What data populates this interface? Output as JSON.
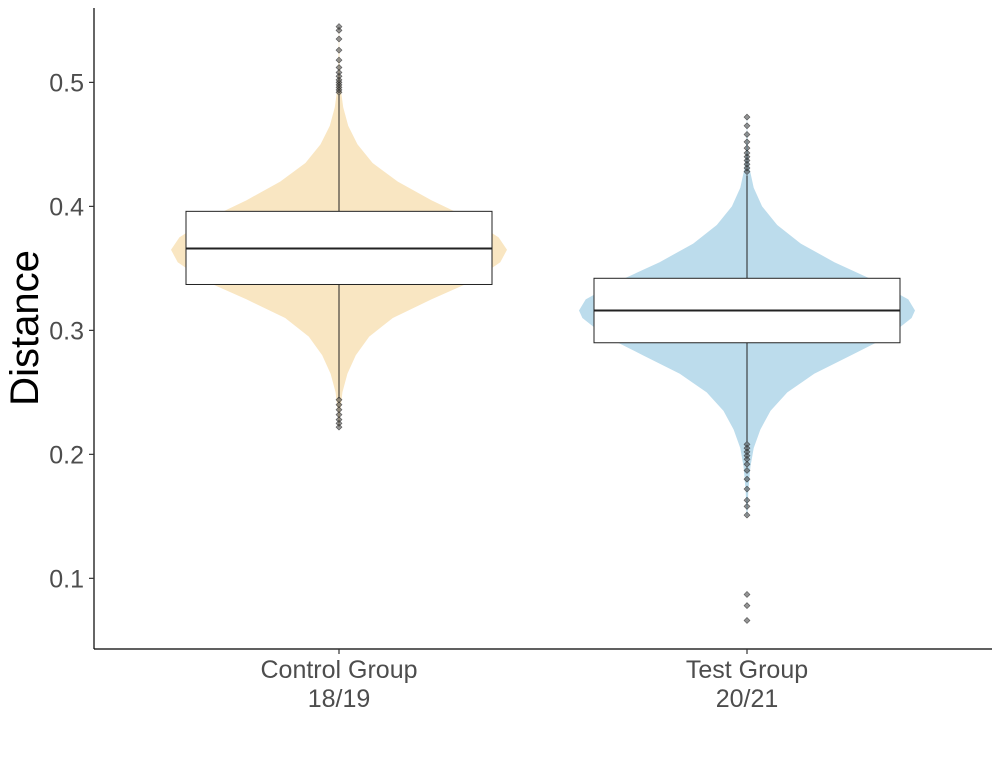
{
  "chart_data": {
    "type": "violin-boxplot",
    "ylabel": "Distance",
    "xlabel": "",
    "ylim": [
      0.043,
      0.56
    ],
    "yticks": [
      0.1,
      0.2,
      0.3,
      0.4,
      0.5
    ],
    "ytick_labels": [
      "0.1",
      "0.2",
      "0.3",
      "0.4",
      "0.5"
    ],
    "grid": false,
    "groups": [
      {
        "label_line1": "Control Group",
        "label_line2": "18/19",
        "color": "#f9e6c2",
        "box": {
          "lower_whisker": 0.245,
          "q1": 0.337,
          "median": 0.366,
          "q3": 0.396,
          "upper_whisker": 0.49
        },
        "outliers": [
          0.492,
          0.494,
          0.496,
          0.498,
          0.5,
          0.502,
          0.505,
          0.508,
          0.512,
          0.518,
          0.526,
          0.535,
          0.542,
          0.545,
          0.244,
          0.24,
          0.236,
          0.232,
          0.228,
          0.225,
          0.222
        ],
        "density": [
          [
            0.222,
            0.003
          ],
          [
            0.235,
            0.008
          ],
          [
            0.25,
            0.02
          ],
          [
            0.265,
            0.05
          ],
          [
            0.28,
            0.1
          ],
          [
            0.295,
            0.18
          ],
          [
            0.31,
            0.32
          ],
          [
            0.325,
            0.55
          ],
          [
            0.34,
            0.8
          ],
          [
            0.355,
            0.96
          ],
          [
            0.365,
            1.0
          ],
          [
            0.375,
            0.95
          ],
          [
            0.39,
            0.78
          ],
          [
            0.405,
            0.55
          ],
          [
            0.42,
            0.35
          ],
          [
            0.435,
            0.2
          ],
          [
            0.45,
            0.11
          ],
          [
            0.465,
            0.055
          ],
          [
            0.48,
            0.025
          ],
          [
            0.495,
            0.01
          ],
          [
            0.51,
            0.004
          ],
          [
            0.53,
            0.002
          ],
          [
            0.545,
            0.001
          ]
        ]
      },
      {
        "label_line1": "Test Group",
        "label_line2": "20/21",
        "color": "#bcdcec",
        "box": {
          "lower_whisker": 0.21,
          "q1": 0.29,
          "median": 0.316,
          "q3": 0.342,
          "upper_whisker": 0.425
        },
        "outliers": [
          0.428,
          0.431,
          0.434,
          0.437,
          0.44,
          0.443,
          0.447,
          0.452,
          0.458,
          0.465,
          0.472,
          0.208,
          0.205,
          0.202,
          0.199,
          0.196,
          0.192,
          0.187,
          0.18,
          0.172,
          0.163,
          0.158,
          0.151,
          0.087,
          0.078,
          0.066
        ],
        "density": [
          [
            0.15,
            0.003
          ],
          [
            0.17,
            0.008
          ],
          [
            0.19,
            0.02
          ],
          [
            0.205,
            0.04
          ],
          [
            0.22,
            0.08
          ],
          [
            0.235,
            0.14
          ],
          [
            0.25,
            0.24
          ],
          [
            0.265,
            0.4
          ],
          [
            0.28,
            0.62
          ],
          [
            0.295,
            0.84
          ],
          [
            0.31,
            0.98
          ],
          [
            0.316,
            1.0
          ],
          [
            0.325,
            0.96
          ],
          [
            0.34,
            0.76
          ],
          [
            0.355,
            0.52
          ],
          [
            0.37,
            0.32
          ],
          [
            0.385,
            0.18
          ],
          [
            0.4,
            0.09
          ],
          [
            0.415,
            0.04
          ],
          [
            0.43,
            0.016
          ],
          [
            0.445,
            0.006
          ],
          [
            0.46,
            0.002
          ],
          [
            0.472,
            0.001
          ]
        ]
      }
    ]
  }
}
